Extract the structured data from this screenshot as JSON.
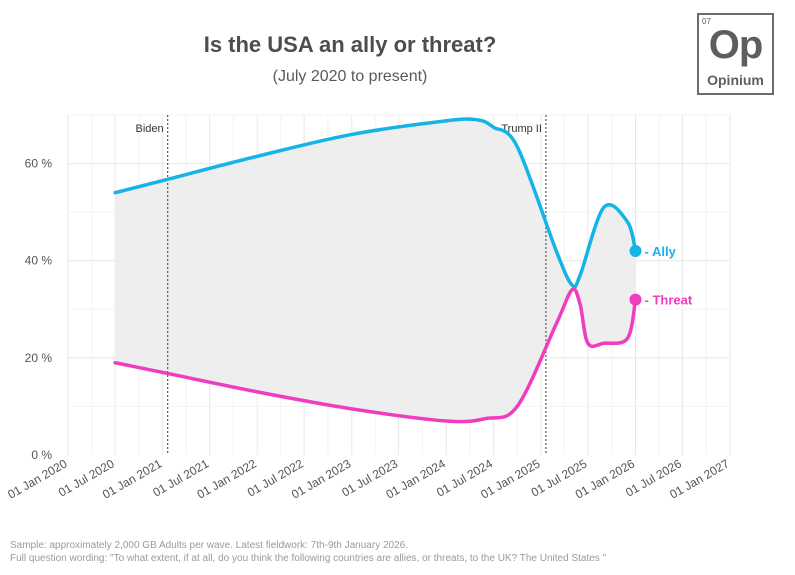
{
  "header": {
    "title": "Is the USA an ally or threat?",
    "subtitle": "(July 2020 to present)"
  },
  "logo": {
    "number": "07",
    "symbol": "Op",
    "name": "Opinium"
  },
  "footer": {
    "sample": "Sample: approximately 2,000 GB Adults per wave. Latest fieldwork: 7th-9th January 2026.",
    "wording": "Full question wording: \"To what extent, if at all, do you think the following countries are allies, or threats, to the UK? The United States \""
  },
  "colors": {
    "ally": "#14b4e6",
    "threat": "#f03cbe",
    "band": "#eeeeee",
    "grid": "#e8e8e8",
    "text": "#555555"
  },
  "chart_data": {
    "type": "line",
    "title": "Is the USA an ally or threat?",
    "subtitle": "(July 2020 to present)",
    "ylim": [
      0,
      70
    ],
    "xlim": [
      "2020-01-01",
      "2027-01-01"
    ],
    "y_ticks": [
      {
        "value": 0,
        "label": "0 %"
      },
      {
        "value": 20,
        "label": "20 %"
      },
      {
        "value": 40,
        "label": "40 %"
      },
      {
        "value": 60,
        "label": "60 %"
      }
    ],
    "x_ticks": [
      {
        "date": "2020-01-01",
        "label": "01 Jan 2020"
      },
      {
        "date": "2020-07-01",
        "label": "01 Jul 2020"
      },
      {
        "date": "2021-01-01",
        "label": "01 Jan 2021"
      },
      {
        "date": "2021-07-01",
        "label": "01 Jul 2021"
      },
      {
        "date": "2022-01-01",
        "label": "01 Jan 2022"
      },
      {
        "date": "2022-07-01",
        "label": "01 Jul 2022"
      },
      {
        "date": "2023-01-01",
        "label": "01 Jan 2023"
      },
      {
        "date": "2023-07-01",
        "label": "01 Jul 2023"
      },
      {
        "date": "2024-01-01",
        "label": "01 Jan 2024"
      },
      {
        "date": "2024-07-01",
        "label": "01 Jul 2024"
      },
      {
        "date": "2025-01-01",
        "label": "01 Jan 2025"
      },
      {
        "date": "2025-07-01",
        "label": "01 Jul 2025"
      },
      {
        "date": "2026-01-01",
        "label": "01 Jan 2026"
      },
      {
        "date": "2026-07-01",
        "label": "01 Jul 2026"
      },
      {
        "date": "2027-01-01",
        "label": "01 Jan 2027"
      }
    ],
    "events": [
      {
        "label": "Biden",
        "date": "2021-01-20"
      },
      {
        "label": "Trump II",
        "date": "2025-01-20"
      }
    ],
    "grid": true,
    "series": [
      {
        "name": "Ally",
        "end_label": "- Ally",
        "points": [
          {
            "date": "2020-07-01",
            "value": 54
          },
          {
            "date": "2021-01-01",
            "value": 56.5
          },
          {
            "date": "2022-01-01",
            "value": 61.5
          },
          {
            "date": "2023-01-01",
            "value": 66
          },
          {
            "date": "2024-01-01",
            "value": 68.8
          },
          {
            "date": "2024-05-01",
            "value": 69
          },
          {
            "date": "2024-07-01",
            "value": 67.5
          },
          {
            "date": "2024-10-01",
            "value": 63.5
          },
          {
            "date": "2025-03-01",
            "value": 42
          },
          {
            "date": "2025-05-01",
            "value": 35
          },
          {
            "date": "2025-06-01",
            "value": 37
          },
          {
            "date": "2025-09-01",
            "value": 51
          },
          {
            "date": "2025-12-01",
            "value": 48
          },
          {
            "date": "2026-01-01",
            "value": 42
          }
        ]
      },
      {
        "name": "Threat",
        "end_label": "- Threat",
        "points": [
          {
            "date": "2020-07-01",
            "value": 19
          },
          {
            "date": "2021-01-01",
            "value": 17
          },
          {
            "date": "2022-01-01",
            "value": 13
          },
          {
            "date": "2023-01-01",
            "value": 9.5
          },
          {
            "date": "2024-01-01",
            "value": 7
          },
          {
            "date": "2024-06-01",
            "value": 7.5
          },
          {
            "date": "2024-10-01",
            "value": 10
          },
          {
            "date": "2025-03-01",
            "value": 27
          },
          {
            "date": "2025-05-01",
            "value": 34
          },
          {
            "date": "2025-06-01",
            "value": 31
          },
          {
            "date": "2025-07-01",
            "value": 23
          },
          {
            "date": "2025-09-01",
            "value": 23
          },
          {
            "date": "2025-12-01",
            "value": 24
          },
          {
            "date": "2026-01-01",
            "value": 32
          }
        ]
      }
    ]
  }
}
